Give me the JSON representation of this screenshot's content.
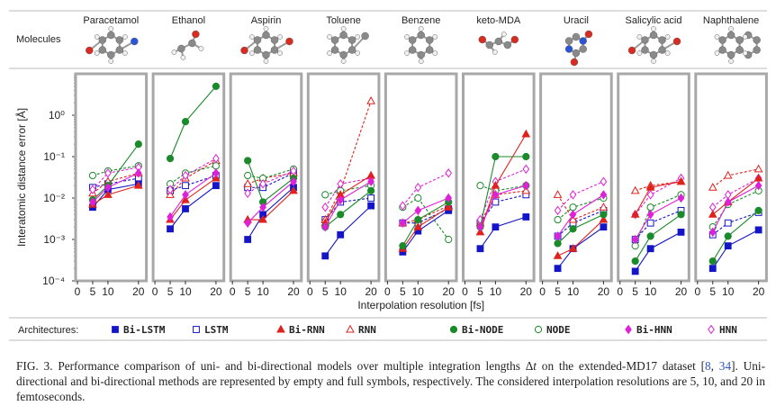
{
  "chart_data": {
    "type": "line",
    "layout": "small-multiples",
    "figure_label": "FIG. 3.",
    "molecules_label": "Molecules",
    "ylabel": "Interatomic distance error [Å]",
    "xlabel": "Interpolation resolution [fs]",
    "y_scale": "log",
    "ylim": [
      0.0001,
      10
    ],
    "y_ticks": [
      "10⁻⁴",
      "10⁻³",
      "10⁻²",
      "10⁻¹",
      "10⁰"
    ],
    "xlim": [
      0,
      22
    ],
    "x_ticks": [
      0,
      5,
      10,
      20
    ],
    "x": [
      5,
      10,
      20
    ],
    "legend_heading": "Architectures:",
    "legend": [
      {
        "name": "Bi-LSTM",
        "color": "#1414c8",
        "marker": "square",
        "filled": true
      },
      {
        "name": "LSTM",
        "color": "#1414c8",
        "marker": "square",
        "filled": false
      },
      {
        "name": "Bi-RNN",
        "color": "#e0221e",
        "marker": "triangle",
        "filled": true
      },
      {
        "name": "RNN",
        "color": "#e0221e",
        "marker": "triangle",
        "filled": false
      },
      {
        "name": "Bi-NODE",
        "color": "#1a8a2a",
        "marker": "circle",
        "filled": true
      },
      {
        "name": "NODE",
        "color": "#1a8a2a",
        "marker": "circle",
        "filled": false
      },
      {
        "name": "Bi-HNN",
        "color": "#e020d8",
        "marker": "diamond",
        "filled": true
      },
      {
        "name": "HNN",
        "color": "#e020d8",
        "marker": "diamond",
        "filled": false
      }
    ],
    "panels": [
      {
        "molecule": "Paracetamol",
        "series": {
          "Bi-LSTM": [
            0.006,
            0.016,
            0.022
          ],
          "LSTM": [
            0.018,
            0.022,
            0.03
          ],
          "Bi-RNN": [
            0.007,
            0.012,
            0.02
          ],
          "RNN": [
            0.013,
            0.025,
            0.04
          ],
          "Bi-NODE": [
            0.009,
            0.02,
            0.2
          ],
          "NODE": [
            0.035,
            0.045,
            0.06
          ],
          "Bi-HNN": [
            0.008,
            0.018,
            0.04
          ],
          "HNN": [
            0.016,
            0.04,
            0.055
          ]
        }
      },
      {
        "molecule": "Ethanol",
        "series": {
          "Bi-LSTM": [
            0.0018,
            0.0055,
            0.02
          ],
          "LSTM": [
            0.015,
            0.02,
            0.035
          ],
          "Bi-RNN": [
            0.003,
            0.009,
            0.03
          ],
          "RNN": [
            0.012,
            0.03,
            0.08
          ],
          "Bi-NODE": [
            0.09,
            0.7,
            5.0
          ],
          "NODE": [
            0.022,
            0.04,
            0.06
          ],
          "Bi-HNN": [
            0.0035,
            0.012,
            0.04
          ],
          "HNN": [
            0.016,
            0.035,
            0.09
          ]
        }
      },
      {
        "molecule": "Aspirin",
        "series": {
          "Bi-LSTM": [
            0.001,
            0.004,
            0.018
          ],
          "LSTM": [
            0.018,
            0.018,
            0.04
          ],
          "Bi-RNN": [
            0.003,
            0.003,
            0.015
          ],
          "RNN": [
            0.022,
            0.03,
            0.04
          ],
          "Bi-NODE": [
            0.08,
            0.008,
            0.03
          ],
          "NODE": [
            0.035,
            0.03,
            0.05
          ],
          "Bi-HNN": [
            0.0025,
            0.006,
            0.025
          ],
          "HNN": [
            0.013,
            0.022,
            0.045
          ]
        }
      },
      {
        "molecule": "Toluene",
        "series": {
          "Bi-LSTM": [
            0.0004,
            0.0013,
            0.0065
          ],
          "LSTM": [
            0.003,
            0.008,
            0.01
          ],
          "Bi-RNN": [
            0.0025,
            0.012,
            0.035
          ],
          "RNN": [
            0.003,
            0.015,
            2.2
          ],
          "Bi-NODE": [
            0.002,
            0.004,
            0.015
          ],
          "NODE": [
            0.012,
            0.015,
            0.02
          ],
          "Bi-HNN": [
            0.002,
            0.009,
            0.025
          ],
          "HNN": [
            0.006,
            0.022,
            0.03
          ]
        }
      },
      {
        "molecule": "Benzene",
        "series": {
          "Bi-LSTM": [
            0.0005,
            0.0016,
            0.005
          ],
          "LSTM": [
            0.0025,
            0.0025,
            0.0055
          ],
          "Bi-RNN": [
            0.0006,
            0.002,
            0.006
          ],
          "RNN": [
            0.0025,
            0.003,
            0.0065
          ],
          "Bi-NODE": [
            0.0007,
            0.003,
            0.008
          ],
          "NODE": [
            0.006,
            0.01,
            0.001
          ],
          "Bi-HNN": [
            0.0025,
            0.005,
            0.01
          ],
          "HNN": [
            0.0065,
            0.018,
            0.04
          ]
        }
      },
      {
        "molecule": "keto-MDA",
        "series": {
          "Bi-LSTM": [
            0.0006,
            0.002,
            0.0035
          ],
          "LSTM": [
            0.0025,
            0.008,
            0.012
          ],
          "Bi-RNN": [
            0.0015,
            0.02,
            0.35
          ],
          "RNN": [
            0.0025,
            0.012,
            0.015
          ],
          "Bi-NODE": [
            0.002,
            0.1,
            0.1
          ],
          "NODE": [
            0.02,
            0.015,
            0.02
          ],
          "Bi-HNN": [
            0.002,
            0.012,
            0.02
          ],
          "HNN": [
            0.003,
            0.025,
            0.05
          ]
        }
      },
      {
        "molecule": "Uracil",
        "series": {
          "Bi-LSTM": [
            0.0002,
            0.0006,
            0.002
          ],
          "LSTM": [
            0.0012,
            0.0025,
            0.005
          ],
          "Bi-RNN": [
            0.0004,
            0.0006,
            0.003
          ],
          "RNN": [
            0.012,
            0.003,
            0.006
          ],
          "Bi-NODE": [
            0.0008,
            0.0018,
            0.004
          ],
          "NODE": [
            0.003,
            0.006,
            0.01
          ],
          "Bi-HNN": [
            0.0012,
            0.004,
            0.012
          ],
          "HNN": [
            0.005,
            0.012,
            0.025
          ]
        }
      },
      {
        "molecule": "Salicylic acid",
        "series": {
          "Bi-LSTM": [
            0.00017,
            0.0006,
            0.0015
          ],
          "LSTM": [
            0.001,
            0.0025,
            0.005
          ],
          "Bi-RNN": [
            0.004,
            0.018,
            0.025
          ],
          "RNN": [
            0.015,
            0.02,
            0.025
          ],
          "Bi-NODE": [
            0.0003,
            0.0012,
            0.004
          ],
          "NODE": [
            0.0007,
            0.006,
            0.012
          ],
          "Bi-HNN": [
            0.001,
            0.004,
            0.01
          ],
          "HNN": [
            0.004,
            0.012,
            0.03
          ]
        }
      },
      {
        "molecule": "Naphthalene",
        "series": {
          "Bi-LSTM": [
            0.0002,
            0.0007,
            0.0017
          ],
          "LSTM": [
            0.0013,
            0.0025,
            0.0045
          ],
          "Bi-RNN": [
            0.004,
            0.008,
            0.03
          ],
          "RNN": [
            0.018,
            0.035,
            0.05
          ],
          "Bi-NODE": [
            0.0003,
            0.0012,
            0.005
          ],
          "NODE": [
            0.002,
            0.007,
            0.015
          ],
          "Bi-HNN": [
            0.0015,
            0.008,
            0.02
          ],
          "HNN": [
            0.006,
            0.012,
            0.03
          ]
        }
      }
    ]
  },
  "caption": {
    "label": "FIG. 3.",
    "part1": "Performance comparison of uni- and bi-directional models over multiple integration lengths ",
    "delta": "Δ",
    "t": "t",
    "part2": " on the extended-MD17 dataset [",
    "ref1": "8",
    "sep": ", ",
    "ref2": "34",
    "part3": "].  Uni-directional and bi-directional methods are represented by empty and full symbols, respectively.  The considered interpolation resolutions are 5, 10, and 20 in femtoseconds."
  }
}
